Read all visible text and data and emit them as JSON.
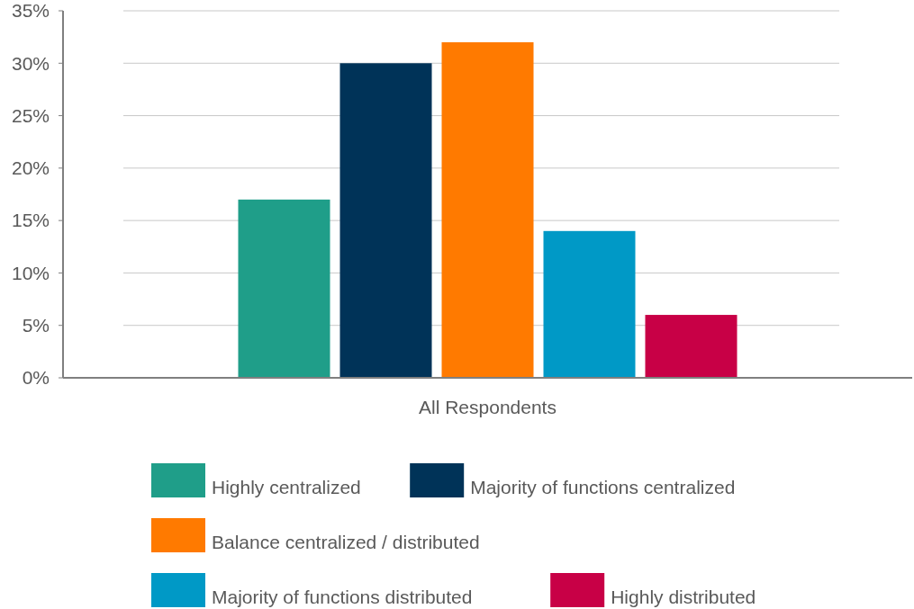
{
  "chart_data": {
    "type": "bar",
    "categories": [
      "All Respondents"
    ],
    "series": [
      {
        "name": "Highly centralized",
        "color": "#1f9e89",
        "values": [
          17
        ]
      },
      {
        "name": "Majority of functions centralized",
        "color": "#003358",
        "values": [
          30
        ]
      },
      {
        "name": "Balance centralized / distributed",
        "color": "#ff7a00",
        "values": [
          32
        ]
      },
      {
        "name": "Majority of functions distributed",
        "color": "#0099c6",
        "values": [
          14
        ]
      },
      {
        "name": "Highly distributed",
        "color": "#c80046",
        "values": [
          6
        ]
      }
    ],
    "ylim": [
      0,
      35
    ],
    "yticks": [
      {
        "value": 0,
        "label": "0%"
      },
      {
        "value": 5,
        "label": "5%"
      },
      {
        "value": 10,
        "label": "10%"
      },
      {
        "value": 15,
        "label": "15%"
      },
      {
        "value": 20,
        "label": "20%"
      },
      {
        "value": 25,
        "label": "25%"
      },
      {
        "value": 30,
        "label": "30%"
      },
      {
        "value": 35,
        "label": "35%"
      }
    ],
    "grid": "y",
    "legend": "bottom"
  }
}
